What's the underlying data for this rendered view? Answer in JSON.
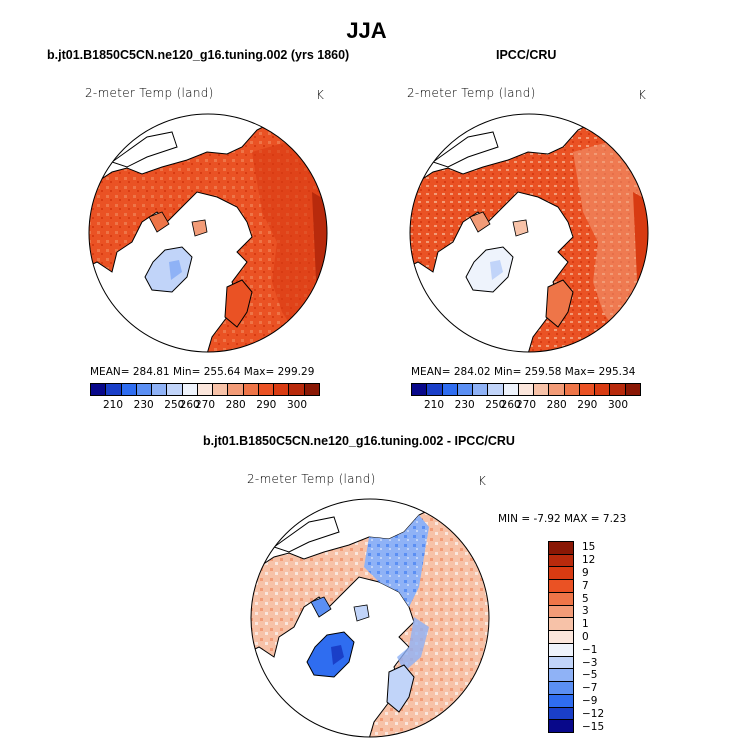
{
  "title": "JJA",
  "panels": [
    {
      "id": "model",
      "title": "b.jt01.B1850C5CN.ne120_g16.tuning.002 (yrs 1860)",
      "variable": "2-meter Temp (land)",
      "units": "K",
      "stats": "MEAN=  284.81    Min=  255.64    Max=  299.29",
      "colorbar_ticks": [
        "210",
        "230",
        "250",
        "260",
        "270",
        "280",
        "290",
        "300"
      ]
    },
    {
      "id": "obs",
      "title": "IPCC/CRU",
      "variable": "2-meter Temp (land)",
      "units": "K",
      "stats": "MEAN=  284.02    Min=  259.58    Max=  295.34",
      "colorbar_ticks": [
        "210",
        "230",
        "250",
        "260",
        "270",
        "280",
        "290",
        "300"
      ]
    },
    {
      "id": "diff",
      "title": "b.jt01.B1850C5CN.ne120_g16.tuning.002 - IPCC/CRU",
      "variable": "2-meter Temp (land)",
      "units": "K",
      "stats": "MIN =   -7.92  MAX =    7.23",
      "colorbar_ticks": [
        "15",
        "12",
        "9",
        "7",
        "5",
        "3",
        "1",
        "0",
        "−1",
        "−3",
        "−5",
        "−7",
        "−9",
        "−12",
        "−15"
      ]
    }
  ],
  "colors": {
    "abs_scale": [
      "#08088a",
      "#1a3fc8",
      "#2f6df0",
      "#5b8ff3",
      "#8fb2f6",
      "#c1d4f9",
      "#eef3fc",
      "#fbe6dc",
      "#f7c2a8",
      "#f29b77",
      "#ee7548",
      "#ea5224",
      "#d83b12",
      "#b82a0c",
      "#8a1805"
    ],
    "diff_scale": [
      "#8a1805",
      "#b82a0c",
      "#d83b12",
      "#ea5224",
      "#ee7548",
      "#f29b77",
      "#f7c2a8",
      "#fbe6dc",
      "#eef3fc",
      "#c1d4f9",
      "#8fb2f6",
      "#5b8ff3",
      "#2f6df0",
      "#1a3fc8",
      "#08088a"
    ]
  }
}
